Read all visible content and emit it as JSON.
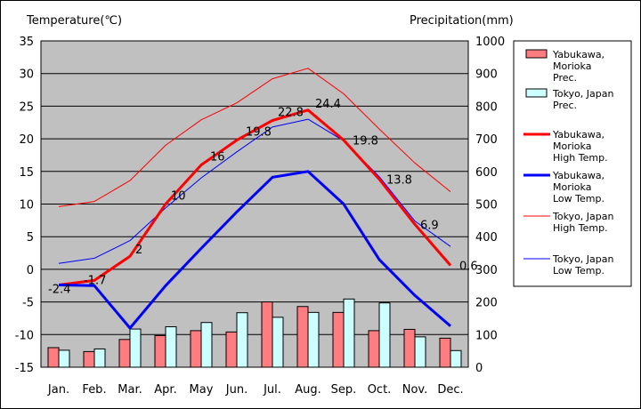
{
  "chart_data": {
    "type": "bar+line",
    "left_axis_title": "Temperature(℃)",
    "right_axis_title": "Precipitation(mm)",
    "categories": [
      "Jan.",
      "Feb.",
      "Mar.",
      "Apr.",
      "May",
      "Jun.",
      "Jul.",
      "Aug.",
      "Sep.",
      "Oct.",
      "Nov.",
      "Dec."
    ],
    "ylim_left": [
      -15,
      35
    ],
    "yticks_left": [
      -15,
      -10,
      -5,
      0,
      5,
      10,
      15,
      20,
      25,
      30,
      35
    ],
    "ylim_right": [
      0,
      1000
    ],
    "yticks_right": [
      0,
      100,
      200,
      300,
      400,
      500,
      600,
      700,
      800,
      900,
      1000
    ],
    "grid": "horizontal",
    "legend_position": "right",
    "plot_background": "#c0c0c0",
    "bar_series": [
      {
        "name": "Yabukawa, Morioka Prec.",
        "legend_lines": [
          "Yabukawa,",
          "Morioka",
          "Prec."
        ],
        "color": "#ff7c80",
        "values": [
          60,
          48,
          85,
          97,
          112,
          108,
          200,
          186,
          168,
          112,
          116,
          89
        ]
      },
      {
        "name": "Tokyo, Japan Prec.",
        "legend_lines": [
          "Tokyo, Japan",
          "Prec."
        ],
        "color": "#ccffff",
        "values": [
          52,
          56,
          117,
          124,
          137,
          167,
          153,
          168,
          209,
          197,
          93,
          51
        ]
      }
    ],
    "line_series": [
      {
        "name": "Yabukawa, Morioka High Temp.",
        "legend_lines": [
          "Yabukawa,",
          "Morioka",
          "High Temp."
        ],
        "color": "#ff0000",
        "width": 3,
        "values": [
          -2.4,
          -1.7,
          2.0,
          10.0,
          16.0,
          19.8,
          22.8,
          24.4,
          19.8,
          13.8,
          6.9,
          0.6
        ],
        "labels": [
          "-2.4",
          "-1.7",
          "2",
          "10",
          "16",
          "19.8",
          "22.8",
          "24.4",
          "19.8",
          "13.8",
          "6.9",
          "0.6"
        ]
      },
      {
        "name": "Yabukawa, Morioka Low Temp.",
        "legend_lines": [
          "Yabukawa,",
          "Morioka",
          "Low Temp."
        ],
        "color": "#0000ff",
        "width": 3,
        "values": [
          -2.4,
          -2.5,
          -9.0,
          -2.5,
          3.2,
          8.8,
          14.1,
          15.0,
          10.0,
          1.5,
          -4.0,
          -8.7
        ]
      },
      {
        "name": "Tokyo, Japan High Temp.",
        "legend_lines": [
          "Tokyo, Japan",
          "High Temp."
        ],
        "color": "#ff0000",
        "width": 1,
        "values": [
          9.6,
          10.4,
          13.6,
          19.0,
          22.9,
          25.5,
          29.2,
          30.8,
          26.9,
          21.5,
          16.3,
          11.9
        ]
      },
      {
        "name": "Tokyo, Japan Low Temp.",
        "legend_lines": [
          "Tokyo, Japan",
          "Low Temp."
        ],
        "color": "#0000ff",
        "width": 1,
        "values": [
          0.9,
          1.7,
          4.4,
          9.4,
          14.0,
          18.0,
          21.8,
          23.0,
          19.7,
          14.2,
          7.4,
          3.5
        ]
      }
    ]
  }
}
